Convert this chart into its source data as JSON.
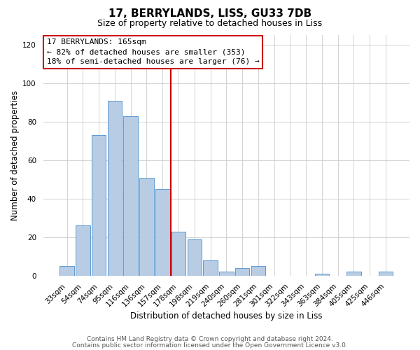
{
  "title": "17, BERRYLANDS, LISS, GU33 7DB",
  "subtitle": "Size of property relative to detached houses in Liss",
  "xlabel": "Distribution of detached houses by size in Liss",
  "ylabel": "Number of detached properties",
  "categories": [
    "33sqm",
    "54sqm",
    "74sqm",
    "95sqm",
    "116sqm",
    "136sqm",
    "157sqm",
    "178sqm",
    "198sqm",
    "219sqm",
    "240sqm",
    "260sqm",
    "281sqm",
    "301sqm",
    "322sqm",
    "343sqm",
    "363sqm",
    "384sqm",
    "405sqm",
    "425sqm",
    "446sqm"
  ],
  "values": [
    5,
    26,
    73,
    91,
    83,
    51,
    45,
    23,
    19,
    8,
    2,
    4,
    5,
    0,
    0,
    0,
    1,
    0,
    2,
    0,
    2
  ],
  "bar_color": "#b8cce4",
  "bar_edge_color": "#5b9bd5",
  "vline_color": "#cc0000",
  "vline_pos": 6.5,
  "annotation_line1": "17 BERRYLANDS: 165sqm",
  "annotation_line2": "← 82% of detached houses are smaller (353)",
  "annotation_line3": "18% of semi-detached houses are larger (76) →",
  "ylim": [
    0,
    125
  ],
  "yticks": [
    0,
    20,
    40,
    60,
    80,
    100,
    120
  ],
  "footer_line1": "Contains HM Land Registry data © Crown copyright and database right 2024.",
  "footer_line2": "Contains public sector information licensed under the Open Government Licence v3.0.",
  "background_color": "#ffffff",
  "grid_color": "#cccccc",
  "title_fontsize": 11,
  "subtitle_fontsize": 9,
  "axis_label_fontsize": 8.5,
  "tick_fontsize": 7.5,
  "annotation_fontsize": 8,
  "footer_fontsize": 6.5
}
